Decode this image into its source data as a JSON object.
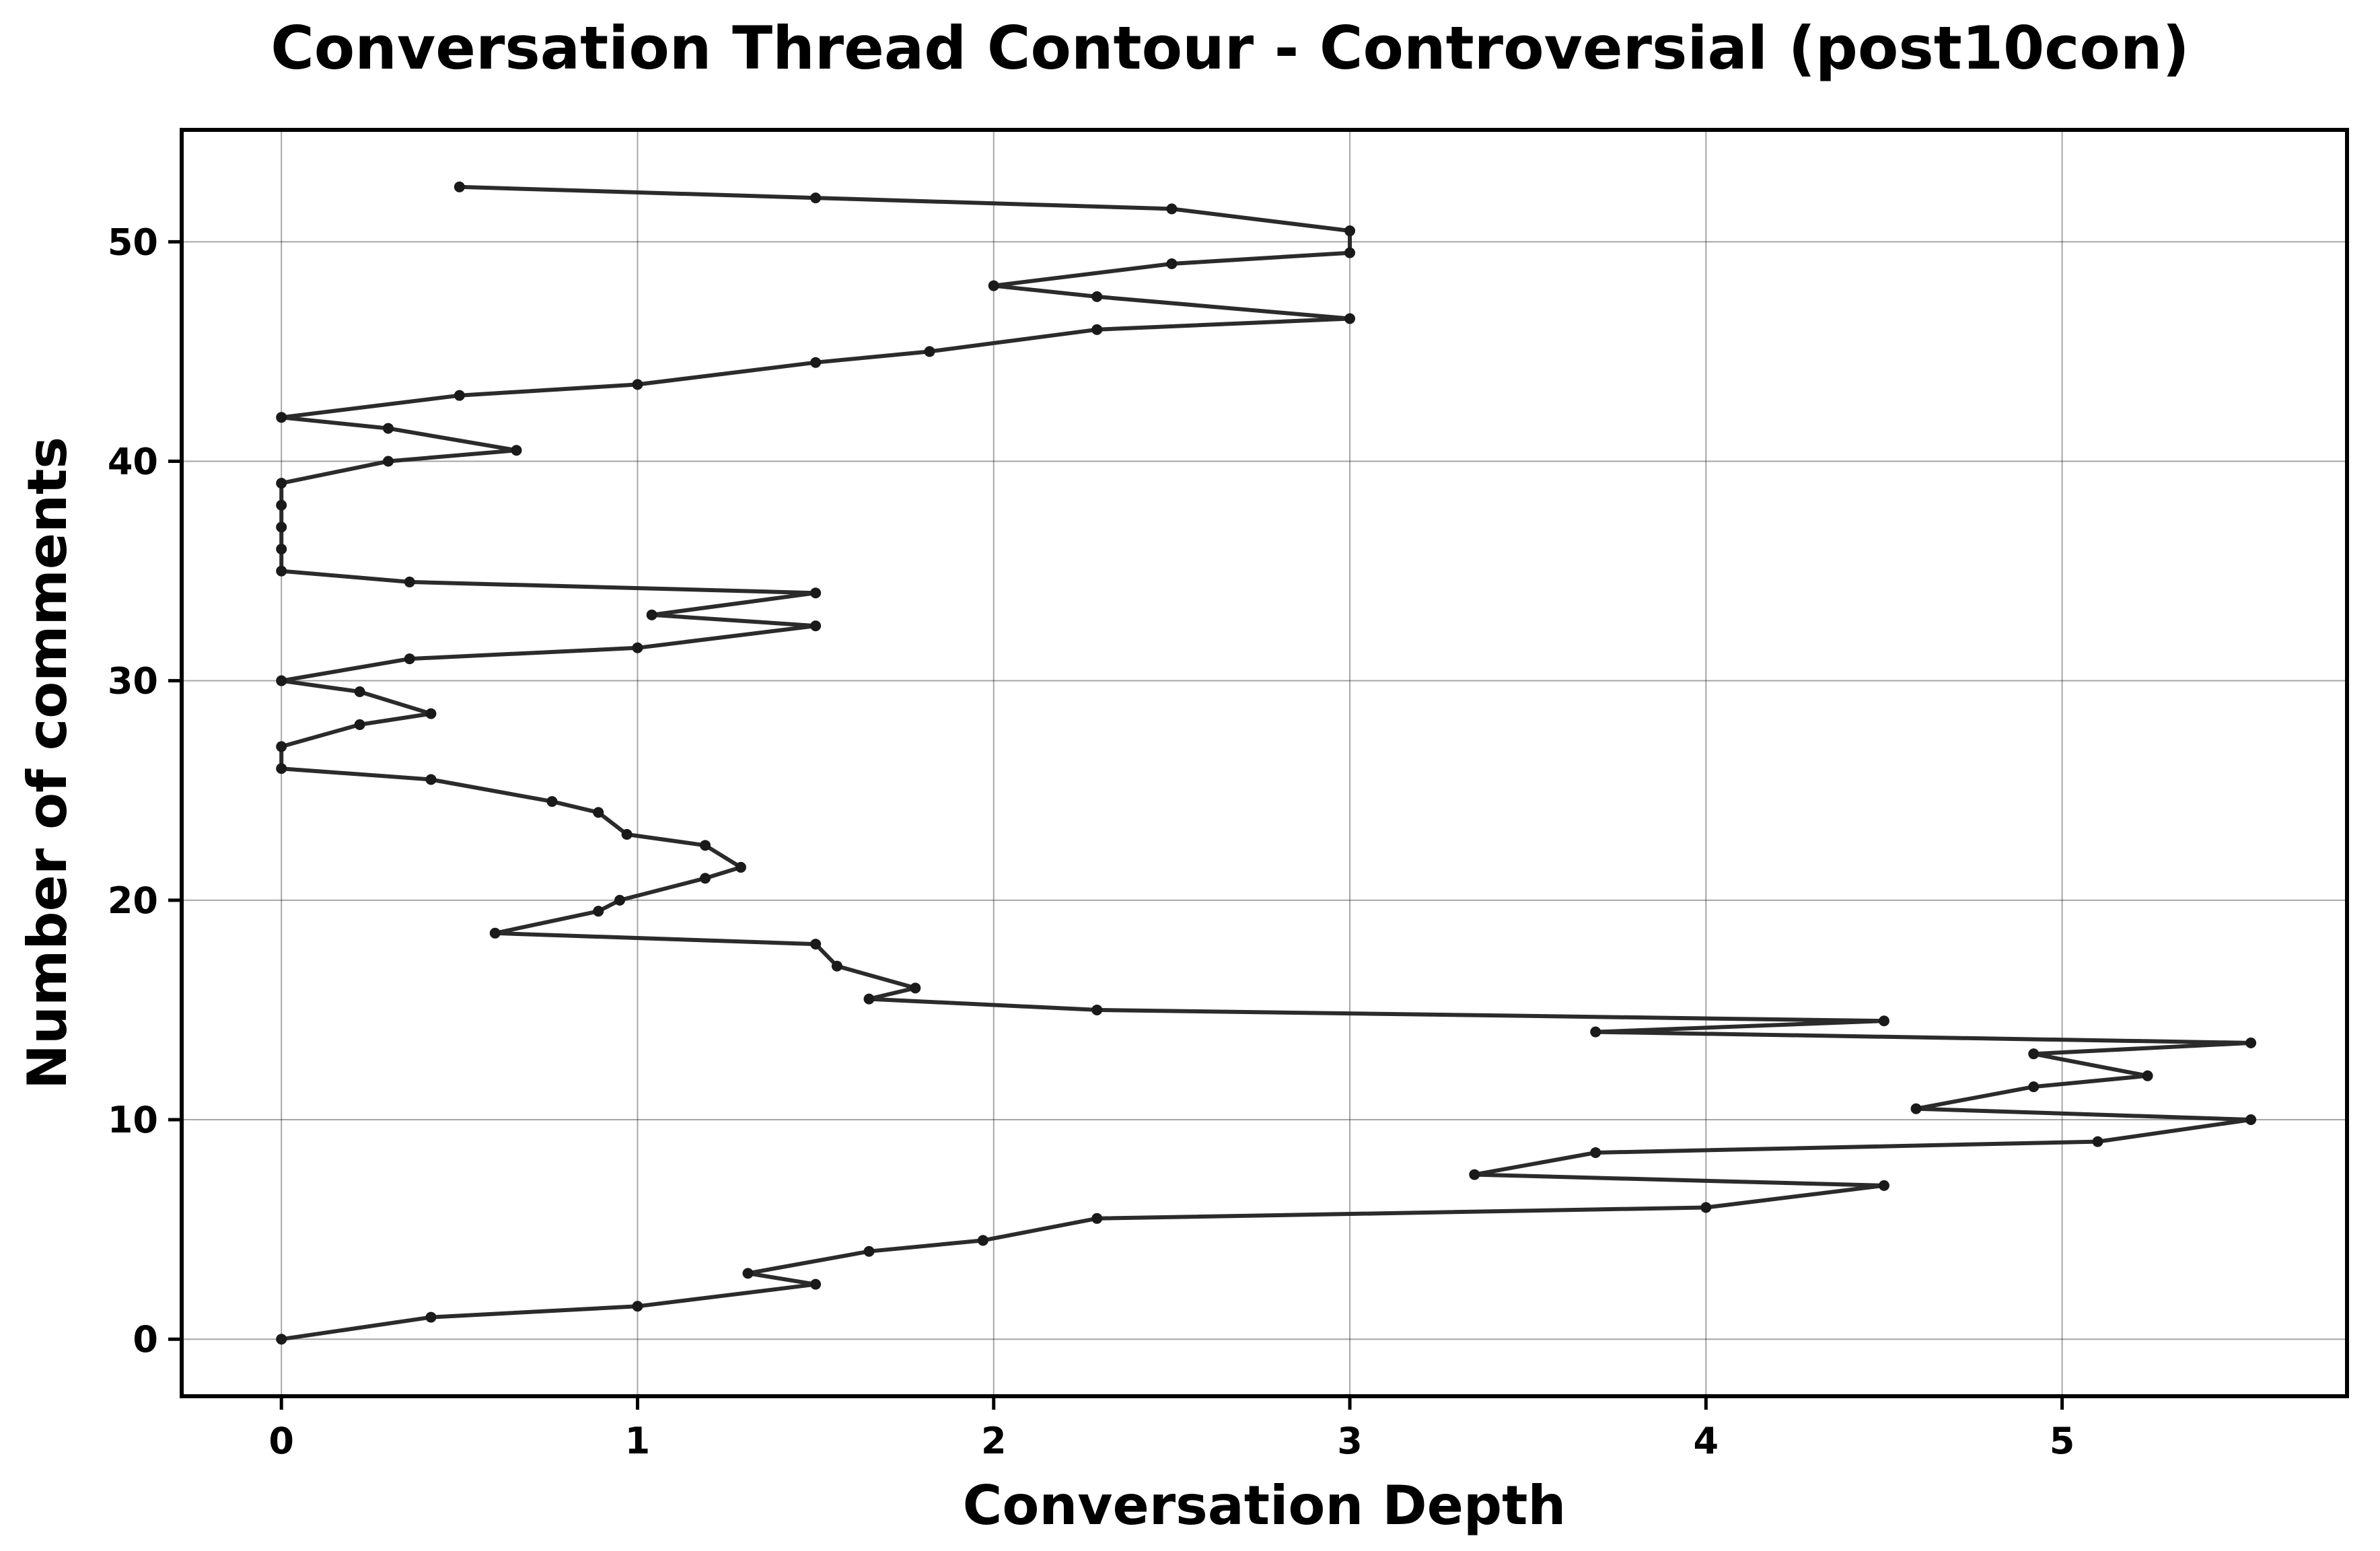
{
  "chart_data": {
    "type": "line",
    "title": "Conversation Thread Contour  - Controversial (post10con)",
    "xlabel": "Conversation Depth",
    "ylabel": "Number of comments",
    "xlim": [
      -0.28,
      5.8
    ],
    "ylim": [
      -2.6,
      55.1
    ],
    "xticks": [
      0,
      1,
      2,
      3,
      4,
      5
    ],
    "yticks": [
      0,
      10,
      20,
      30,
      40,
      50
    ],
    "grid": true,
    "color": "#2b2b2b",
    "series": [
      {
        "x": [
          0,
          0.42,
          1.0,
          1.5,
          1.31,
          1.65,
          1.97,
          2.29,
          4.0,
          4.5,
          3.35,
          3.69,
          5.1,
          5.53,
          4.59,
          4.92,
          5.24,
          4.92,
          5.53,
          3.69,
          4.5,
          2.29,
          1.65,
          1.78,
          1.56,
          1.5,
          0.6,
          0.89,
          0.95,
          1.19,
          1.29,
          1.19,
          0.97,
          0.89,
          0.76,
          0.42,
          0,
          0,
          0.22,
          0.42,
          0.22,
          0,
          0.36,
          1.0,
          1.5,
          1.04,
          1.5,
          0.36,
          0,
          0,
          0,
          0,
          0,
          0.3,
          0.66,
          0.3,
          0,
          0.5,
          1.0,
          1.5,
          1.82,
          2.29,
          3.0,
          2.29,
          2.0,
          2.5,
          3.0,
          3.0,
          2.5,
          1.5,
          0.5
        ],
        "y": [
          0,
          1,
          1.5,
          2.5,
          3,
          4,
          4.5,
          5.5,
          6,
          7,
          7.5,
          8.5,
          9,
          10,
          10.5,
          11.5,
          12,
          13,
          13.5,
          14,
          14.5,
          15,
          15.5,
          16,
          17,
          18,
          18.5,
          19.5,
          20,
          21,
          21.5,
          22.5,
          23,
          24,
          24.5,
          25.5,
          26,
          27,
          28,
          28.5,
          29.5,
          30,
          31,
          31.5,
          32.5,
          33,
          34,
          34.5,
          35,
          36,
          37,
          38,
          39,
          40,
          40.5,
          41.5,
          42,
          43,
          43.5,
          44.5,
          45,
          46,
          46.5,
          47.5,
          48,
          49,
          49.5,
          50.5,
          51.5,
          52,
          52.5
        ]
      }
    ]
  }
}
